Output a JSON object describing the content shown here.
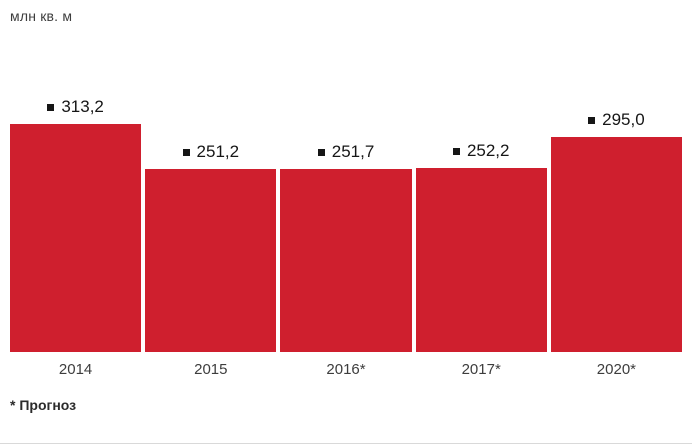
{
  "header": {
    "unit_label": "млн кв. м"
  },
  "footnote": "* Прогноз",
  "colors": {
    "bar": "#cf1f2e",
    "marker": "#161616"
  },
  "chart_data": {
    "type": "bar",
    "categories": [
      "2014",
      "2015",
      "2016*",
      "2017*",
      "2020*"
    ],
    "values": [
      313.2,
      251.2,
      251.7,
      252.2,
      295.0
    ],
    "value_labels": [
      "313,2",
      "251,2",
      "251,7",
      "252,2",
      "295,0"
    ],
    "title": "",
    "xlabel": "",
    "ylabel": "млн кв. м",
    "ylim": [
      0,
      320
    ],
    "grid": false,
    "legend": false,
    "bar_color": "#cf1f2e",
    "annotation": "* Прогноз"
  }
}
